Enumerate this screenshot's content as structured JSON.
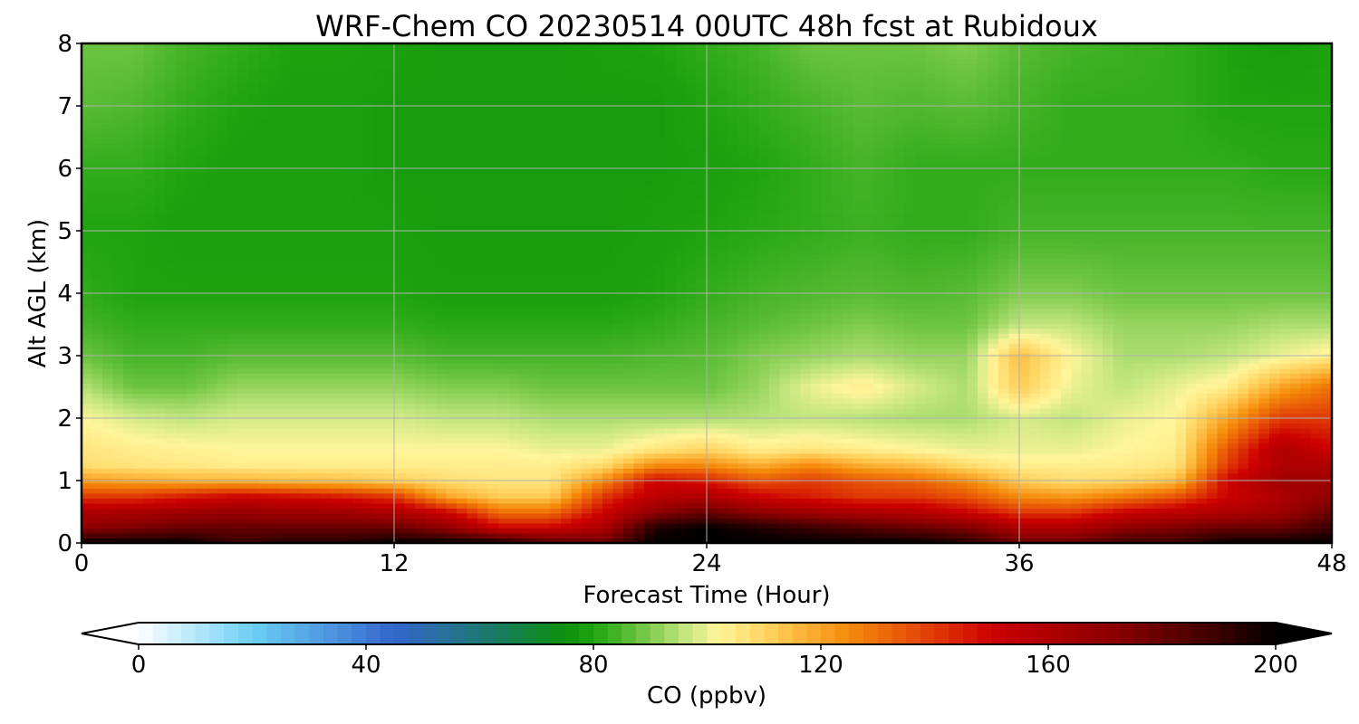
{
  "chart_data": {
    "type": "heatmap",
    "title": "WRF-Chem CO  20230514 00UTC 48h fcst at Rubidoux",
    "xlabel": "Forecast Time (Hour)",
    "ylabel": "Alt AGL (km)",
    "xlim": [
      0,
      48
    ],
    "ylim": [
      0,
      8
    ],
    "x_ticks": [
      0,
      12,
      24,
      36,
      48
    ],
    "y_ticks": [
      0,
      1,
      2,
      3,
      4,
      5,
      6,
      7,
      8
    ],
    "grid": true,
    "colorbar": {
      "label": "CO  (ppbv)",
      "min": 0,
      "max": 200,
      "ticks": [
        0,
        40,
        80,
        120,
        160,
        200
      ],
      "extend": "both",
      "orientation": "horizontal",
      "stops": [
        {
          "value": 0,
          "color": "#ffffff"
        },
        {
          "value": 20,
          "color": "#6ccff6"
        },
        {
          "value": 45,
          "color": "#3366cc"
        },
        {
          "value": 62,
          "color": "#1a7a6a"
        },
        {
          "value": 75,
          "color": "#0a8f0a"
        },
        {
          "value": 80,
          "color": "#1fa40f"
        },
        {
          "value": 88,
          "color": "#6cc440"
        },
        {
          "value": 96,
          "color": "#c2e57e"
        },
        {
          "value": 102,
          "color": "#fff59a"
        },
        {
          "value": 112,
          "color": "#ffcc55"
        },
        {
          "value": 125,
          "color": "#f58a0a"
        },
        {
          "value": 140,
          "color": "#e03a05"
        },
        {
          "value": 150,
          "color": "#cc0000"
        },
        {
          "value": 172,
          "color": "#8a0000"
        },
        {
          "value": 190,
          "color": "#3a0000"
        },
        {
          "value": 200,
          "color": "#000000"
        }
      ]
    },
    "z_levels_km": [
      0,
      0.25,
      0.5,
      0.75,
      1,
      1.25,
      1.5,
      2,
      2.5,
      3,
      3.5,
      4,
      5,
      6,
      7,
      8
    ],
    "x_hours": [
      0,
      2,
      4,
      6,
      8,
      10,
      12,
      14,
      16,
      18,
      20,
      22,
      24,
      26,
      28,
      30,
      32,
      34,
      36,
      38,
      40,
      42,
      44,
      46,
      48
    ],
    "values_ppbv_by_hour": [
      [
        200,
        170,
        160,
        140,
        122,
        108,
        106,
        102,
        95,
        88,
        84,
        82,
        80,
        82,
        86,
        88
      ],
      [
        200,
        175,
        162,
        140,
        120,
        106,
        104,
        98,
        88,
        84,
        82,
        80,
        80,
        82,
        85,
        88
      ],
      [
        200,
        180,
        165,
        145,
        118,
        105,
        103,
        96,
        88,
        84,
        82,
        80,
        79,
        80,
        82,
        84
      ],
      [
        190,
        180,
        168,
        150,
        118,
        104,
        102,
        98,
        92,
        86,
        82,
        80,
        79,
        79,
        80,
        82
      ],
      [
        195,
        180,
        165,
        148,
        116,
        104,
        102,
        98,
        92,
        86,
        82,
        80,
        79,
        79,
        79,
        80
      ],
      [
        195,
        180,
        165,
        145,
        115,
        104,
        102,
        98,
        92,
        86,
        82,
        80,
        79,
        79,
        79,
        80
      ],
      [
        200,
        180,
        160,
        140,
        112,
        104,
        102,
        98,
        92,
        86,
        82,
        80,
        79,
        78,
        78,
        79
      ],
      [
        200,
        170,
        150,
        120,
        108,
        104,
        102,
        96,
        90,
        84,
        81,
        79,
        78,
        78,
        78,
        78
      ],
      [
        200,
        150,
        130,
        112,
        106,
        104,
        102,
        96,
        90,
        84,
        81,
        79,
        78,
        78,
        78,
        78
      ],
      [
        185,
        150,
        130,
        112,
        106,
        104,
        100,
        94,
        88,
        84,
        81,
        79,
        78,
        78,
        78,
        78
      ],
      [
        180,
        160,
        150,
        140,
        125,
        108,
        100,
        94,
        88,
        84,
        81,
        79,
        78,
        78,
        78,
        79
      ],
      [
        200,
        195,
        170,
        155,
        150,
        125,
        106,
        94,
        88,
        85,
        82,
        80,
        79,
        78,
        78,
        80
      ],
      [
        200,
        200,
        180,
        160,
        145,
        125,
        110,
        94,
        88,
        86,
        84,
        82,
        80,
        79,
        80,
        82
      ],
      [
        200,
        195,
        170,
        150,
        135,
        118,
        104,
        95,
        92,
        90,
        86,
        84,
        81,
        80,
        82,
        84
      ],
      [
        200,
        190,
        165,
        145,
        140,
        125,
        106,
        96,
        100,
        92,
        88,
        85,
        82,
        82,
        84,
        88
      ],
      [
        200,
        185,
        160,
        140,
        135,
        118,
        104,
        95,
        104,
        94,
        90,
        86,
        83,
        84,
        86,
        88
      ],
      [
        200,
        180,
        158,
        140,
        132,
        115,
        102,
        94,
        98,
        92,
        88,
        85,
        82,
        82,
        85,
        88
      ],
      [
        195,
        175,
        150,
        135,
        125,
        108,
        100,
        94,
        94,
        92,
        88,
        86,
        82,
        82,
        86,
        90
      ],
      [
        180,
        160,
        140,
        125,
        112,
        104,
        100,
        98,
        112,
        115,
        96,
        90,
        84,
        82,
        84,
        86
      ],
      [
        180,
        160,
        140,
        122,
        108,
        104,
        100,
        96,
        100,
        102,
        96,
        90,
        84,
        82,
        82,
        84
      ],
      [
        190,
        170,
        150,
        128,
        110,
        104,
        102,
        100,
        96,
        94,
        92,
        88,
        84,
        82,
        82,
        83
      ],
      [
        190,
        175,
        155,
        135,
        115,
        106,
        104,
        102,
        100,
        94,
        92,
        88,
        84,
        82,
        82,
        82
      ],
      [
        200,
        180,
        160,
        150,
        150,
        140,
        135,
        120,
        104,
        96,
        92,
        88,
        84,
        82,
        80,
        80
      ],
      [
        200,
        180,
        165,
        160,
        165,
        160,
        160,
        140,
        120,
        100,
        94,
        88,
        84,
        81,
        80,
        78
      ],
      [
        200,
        190,
        180,
        170,
        165,
        160,
        150,
        140,
        130,
        104,
        94,
        88,
        84,
        81,
        80,
        80
      ]
    ]
  }
}
